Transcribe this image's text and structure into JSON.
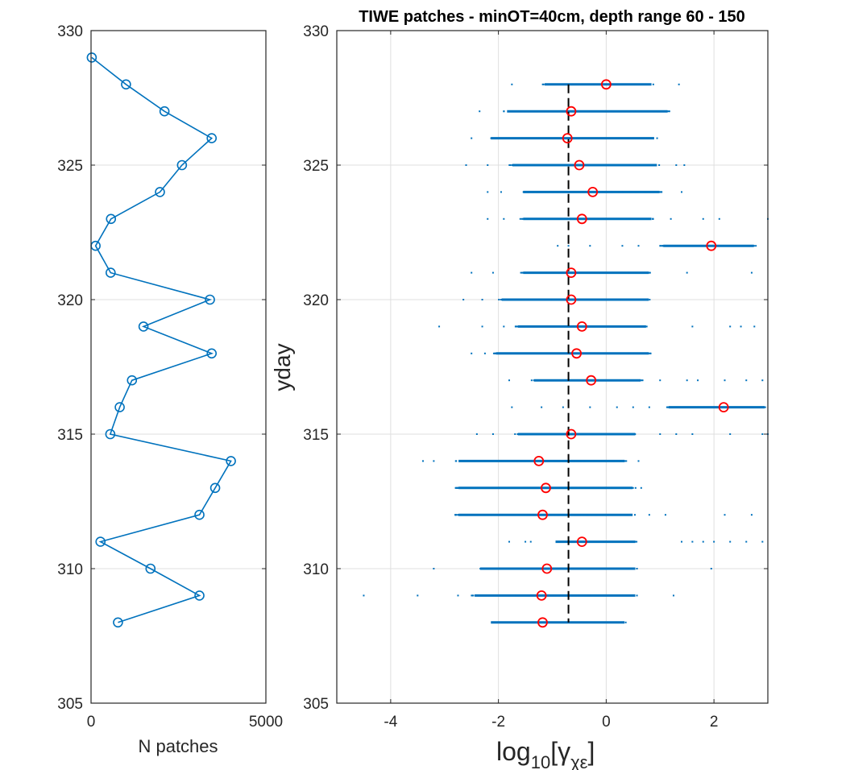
{
  "chart_data": [
    {
      "type": "line",
      "xlabel": "N patches",
      "ylabel": "",
      "xlim": [
        0,
        5000
      ],
      "ylim": [
        305,
        330
      ],
      "xticks": [
        0,
        5000
      ],
      "yticks": [
        305,
        310,
        315,
        320,
        325,
        330
      ],
      "grid": true,
      "marker": "o",
      "color": "#0072bd",
      "series": [
        {
          "name": "N patches",
          "x": [
            770,
            3100,
            1700,
            270,
            3100,
            3550,
            4000,
            550,
            820,
            1170,
            3450,
            1500,
            3400,
            560,
            130,
            570,
            1970,
            2600,
            3450,
            2100,
            1000,
            20
          ],
          "y": [
            308,
            309,
            310,
            311,
            312,
            313,
            314,
            315,
            316,
            317,
            318,
            319,
            320,
            321,
            322,
            323,
            324,
            325,
            326,
            327,
            328,
            329
          ]
        }
      ]
    },
    {
      "type": "scatter",
      "title": "TIWE patches - minOT=40cm, depth range 60 - 150",
      "xlabel_main": "log",
      "xlabel_sub": "10",
      "xlabel_bracket": "[γ",
      "xlabel_sub2": "χε",
      "xlabel_close": "]",
      "ylabel": "yday",
      "xlim": [
        -5,
        3
      ],
      "ylim": [
        305,
        330
      ],
      "xticks": [
        -4,
        -2,
        0,
        2
      ],
      "yticks": [
        305,
        310,
        315,
        320,
        325,
        330
      ],
      "grid": true,
      "dot_color": "#0072bd",
      "median_color": "#ff0000",
      "reference_line": {
        "x": -0.7,
        "y_range": [
          308,
          328
        ],
        "style": "dashed",
        "color": "#000000"
      },
      "rows": [
        {
          "yday": 308,
          "core": [
            -2.2,
            0.4
          ],
          "outliers": [],
          "median": -1.18
        },
        {
          "yday": 309,
          "core": [
            -2.5,
            0.6
          ],
          "outliers": [
            -4.5,
            -3.5,
            -2.75,
            1.25
          ],
          "median": -1.2
        },
        {
          "yday": 310,
          "core": [
            -2.4,
            0.6
          ],
          "outliers": [
            -3.2,
            1.95
          ],
          "median": -1.1
        },
        {
          "yday": 311,
          "core": [
            -1.0,
            0.6
          ],
          "outliers": [
            -1.8,
            -1.5,
            -1.4,
            1.4,
            1.6,
            1.8,
            2.0,
            2.3,
            2.6,
            2.9
          ],
          "median": -0.45
        },
        {
          "yday": 312,
          "core": [
            -2.8,
            0.55
          ],
          "outliers": [
            0.8,
            1.1,
            2.2,
            2.7
          ],
          "median": -1.18
        },
        {
          "yday": 313,
          "core": [
            -2.8,
            0.55
          ],
          "outliers": [
            0.65
          ],
          "median": -1.12
        },
        {
          "yday": 314,
          "core": [
            -2.8,
            0.4
          ],
          "outliers": [
            -3.4,
            -3.2,
            0.6
          ],
          "median": -1.25
        },
        {
          "yday": 315,
          "core": [
            -1.7,
            0.6
          ],
          "outliers": [
            -2.4,
            -2.1,
            1.0,
            1.3,
            1.6,
            2.3,
            2.9,
            3.0
          ],
          "median": -0.65
        },
        {
          "yday": 316,
          "core": [
            1.1,
            3.0
          ],
          "outliers": [
            -1.75,
            -1.2,
            -0.8,
            -0.3,
            0.2,
            0.5,
            0.8
          ],
          "median": 2.18
        },
        {
          "yday": 317,
          "core": [
            -1.4,
            0.7
          ],
          "outliers": [
            -1.8,
            1.0,
            1.5,
            1.7,
            2.2,
            2.6,
            2.9
          ],
          "median": -0.28
        },
        {
          "yday": 318,
          "core": [
            -2.1,
            0.85
          ],
          "outliers": [
            -2.5,
            -2.25
          ],
          "median": -0.55
        },
        {
          "yday": 319,
          "core": [
            -1.7,
            0.8
          ],
          "outliers": [
            -3.1,
            -2.3,
            -1.9,
            1.6,
            2.3,
            2.5,
            2.75
          ],
          "median": -0.45
        },
        {
          "yday": 320,
          "core": [
            -2.0,
            0.85
          ],
          "outliers": [
            -2.65,
            -2.3
          ],
          "median": -0.65
        },
        {
          "yday": 321,
          "core": [
            -1.6,
            0.85
          ],
          "outliers": [
            -2.5,
            -2.1,
            1.5,
            2.7
          ],
          "median": -0.65
        },
        {
          "yday": 322,
          "core": [
            1.0,
            2.8
          ],
          "outliers": [
            -0.9,
            -0.7,
            -0.3,
            0.3,
            0.6
          ],
          "median": 1.95
        },
        {
          "yday": 323,
          "core": [
            -1.6,
            0.9
          ],
          "outliers": [
            -2.2,
            -1.9,
            1.2,
            1.8,
            2.1,
            3.0
          ],
          "median": -0.45
        },
        {
          "yday": 324,
          "core": [
            -1.6,
            1.05
          ],
          "outliers": [
            -2.2,
            -1.95,
            1.4
          ],
          "median": -0.25
        },
        {
          "yday": 325,
          "core": [
            -1.8,
            1.0
          ],
          "outliers": [
            -2.6,
            -2.2,
            1.3,
            1.45
          ],
          "median": -0.5
        },
        {
          "yday": 326,
          "core": [
            -2.2,
            0.95
          ],
          "outliers": [
            -2.5
          ],
          "median": -0.72
        },
        {
          "yday": 327,
          "core": [
            -1.9,
            1.2
          ],
          "outliers": [
            -2.35
          ],
          "median": -0.65
        },
        {
          "yday": 328,
          "core": [
            -1.2,
            0.9
          ],
          "outliers": [
            -1.75,
            1.35
          ],
          "median": 0.0
        }
      ]
    }
  ]
}
